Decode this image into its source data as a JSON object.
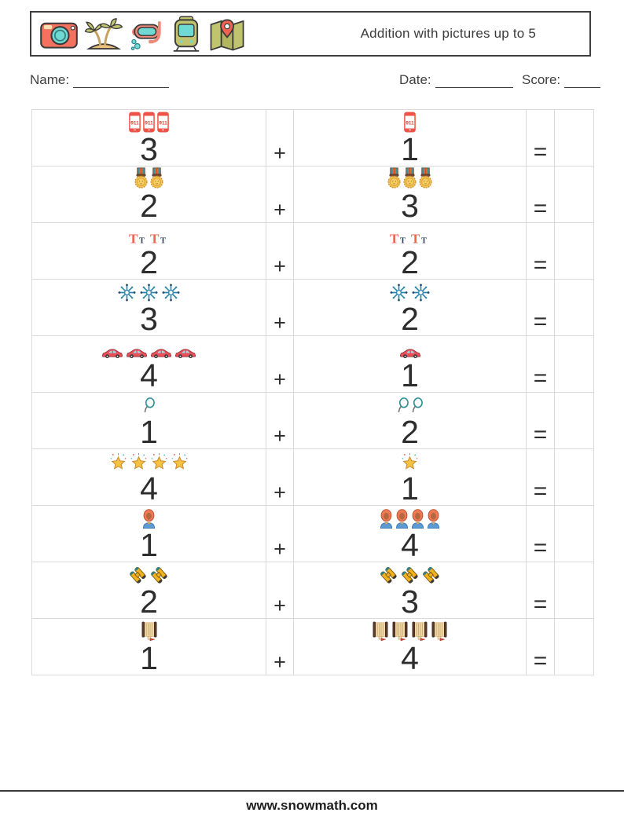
{
  "header": {
    "title": "Addition with pictures up to 5",
    "icons": [
      "camera",
      "palm-island",
      "snorkel-mask",
      "tram",
      "map"
    ]
  },
  "fields": {
    "name_label": "Name:",
    "date_label": "Date:",
    "score_label": "Score:"
  },
  "operators": {
    "plus": "+",
    "equals": "="
  },
  "problems": [
    {
      "icon": "emergency-phone",
      "a": 3,
      "b": 1
    },
    {
      "icon": "medal",
      "a": 2,
      "b": 3
    },
    {
      "icon": "letter-tt",
      "a": 2,
      "b": 2
    },
    {
      "icon": "snowflake",
      "a": 3,
      "b": 2
    },
    {
      "icon": "red-car",
      "a": 4,
      "b": 1
    },
    {
      "icon": "magnifying-glass",
      "a": 1,
      "b": 2
    },
    {
      "icon": "star",
      "a": 4,
      "b": 1
    },
    {
      "icon": "woman",
      "a": 1,
      "b": 4
    },
    {
      "icon": "binoculars",
      "a": 2,
      "b": 3
    },
    {
      "icon": "scroll",
      "a": 1,
      "b": 4
    }
  ],
  "footer": {
    "website": "www.snowmath.com"
  },
  "colors": {
    "accent_red": "#ef5348",
    "salmon": "#f4705f",
    "teal": "#6fd9d4",
    "olive": "#c0c46e",
    "gold": "#f2c14e",
    "snow_blue": "#2e86ab",
    "table_border": "#dadada"
  }
}
